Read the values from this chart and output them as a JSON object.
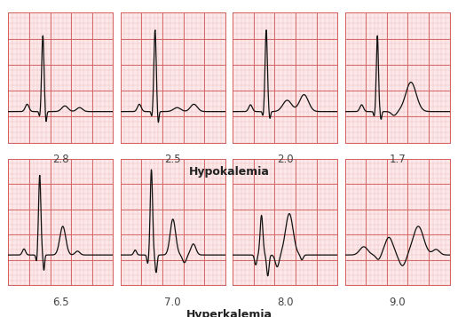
{
  "title_hypo": "Hypokalemia",
  "title_hyper": "Hyperkalemia",
  "labels_hypo": [
    "2.8",
    "2.5",
    "2.0",
    "1.7"
  ],
  "labels_hyper": [
    "6.5",
    "7.0",
    "8.0",
    "9.0"
  ],
  "bg_color": "#fce8e8",
  "grid_major_color": "#d46060",
  "grid_minor_color": "#eab8b8",
  "line_color": "#111111",
  "title_fontsize": 9,
  "label_fontsize": 8.5
}
